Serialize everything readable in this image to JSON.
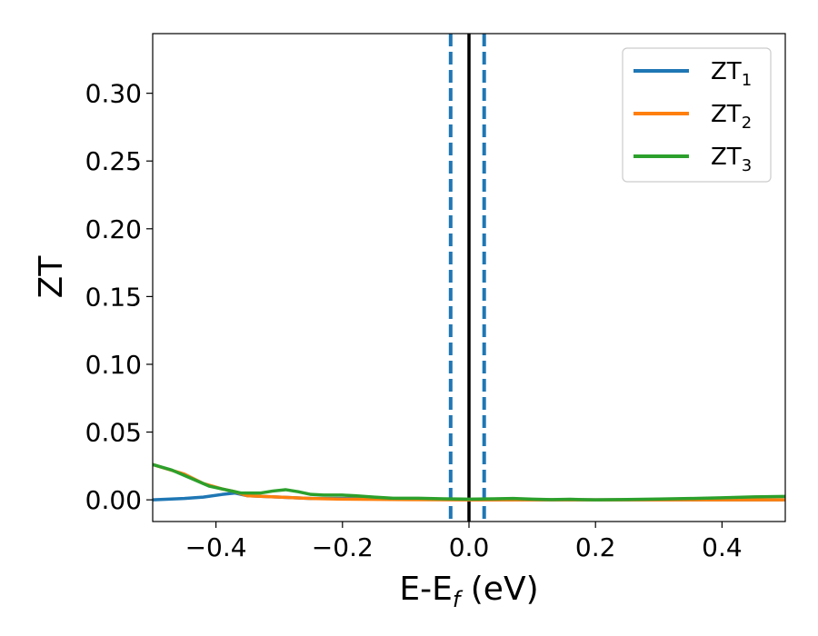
{
  "chart_data": {
    "type": "line",
    "title": "",
    "xlabel": "E-E",
    "xlabel_sub": "f",
    "xlabel_unit": " (eV)",
    "ylabel": "ZT",
    "xlim": [
      -0.5,
      0.5
    ],
    "ylim": [
      -0.016,
      0.344
    ],
    "x_ticks": [
      -0.4,
      -0.2,
      0.0,
      0.2,
      0.4
    ],
    "x_tick_labels": [
      "−0.4",
      "−0.2",
      "0.0",
      "0.2",
      "0.4"
    ],
    "y_ticks": [
      0.0,
      0.05,
      0.1,
      0.15,
      0.2,
      0.25,
      0.3
    ],
    "y_tick_labels": [
      "0.00",
      "0.05",
      "0.10",
      "0.15",
      "0.20",
      "0.25",
      "0.30"
    ],
    "grid": false,
    "legend_position": "top-right",
    "vlines": [
      {
        "x": 0.0,
        "color": "#000000",
        "style": "solid"
      },
      {
        "x": -0.029,
        "color": "#1f77b4",
        "style": "dashed"
      },
      {
        "x": 0.024,
        "color": "#1f77b4",
        "style": "dashed"
      }
    ],
    "series": [
      {
        "name": "ZT",
        "sub": "1",
        "color": "#1f77b4",
        "x": [
          -0.5,
          -0.45,
          -0.42,
          -0.39,
          -0.37,
          -0.35,
          -0.3,
          -0.25,
          -0.2,
          -0.1,
          0.0,
          0.1,
          0.2,
          0.3,
          0.4,
          0.5
        ],
        "y": [
          0.0,
          0.001,
          0.002,
          0.004,
          0.005,
          0.003,
          0.002,
          0.001,
          0.001,
          0.0005,
          0.0,
          0.0,
          0.0,
          0.0,
          0.0,
          0.0
        ]
      },
      {
        "name": "ZT",
        "sub": "2",
        "color": "#ff7f0e",
        "x": [
          -0.5,
          -0.45,
          -0.42,
          -0.39,
          -0.37,
          -0.35,
          -0.3,
          -0.25,
          -0.2,
          -0.1,
          0.0,
          0.1,
          0.2,
          0.3,
          0.4,
          0.5
        ],
        "y": [
          0.026,
          0.019,
          0.012,
          0.008,
          0.006,
          0.003,
          0.002,
          0.001,
          0.0005,
          0.0002,
          0.0,
          0.0,
          0.0,
          0.0,
          0.0,
          0.0
        ]
      },
      {
        "name": "ZT",
        "sub": "3",
        "color": "#2ca02c",
        "x": [
          -0.5,
          -0.47,
          -0.44,
          -0.41,
          -0.38,
          -0.36,
          -0.33,
          -0.31,
          -0.29,
          -0.27,
          -0.25,
          -0.23,
          -0.2,
          -0.18,
          -0.15,
          -0.12,
          -0.08,
          -0.04,
          0.0,
          0.04,
          0.07,
          0.1,
          0.13,
          0.16,
          0.2,
          0.25,
          0.3,
          0.35,
          0.4,
          0.45,
          0.5
        ],
        "y": [
          0.026,
          0.022,
          0.016,
          0.01,
          0.007,
          0.005,
          0.005,
          0.0065,
          0.0075,
          0.006,
          0.004,
          0.0035,
          0.0035,
          0.003,
          0.002,
          0.0012,
          0.0012,
          0.0008,
          0.0005,
          0.0008,
          0.001,
          0.0005,
          0.0002,
          0.0004,
          0.0,
          0.0003,
          0.0006,
          0.001,
          0.0015,
          0.0022,
          0.0025
        ]
      }
    ]
  }
}
